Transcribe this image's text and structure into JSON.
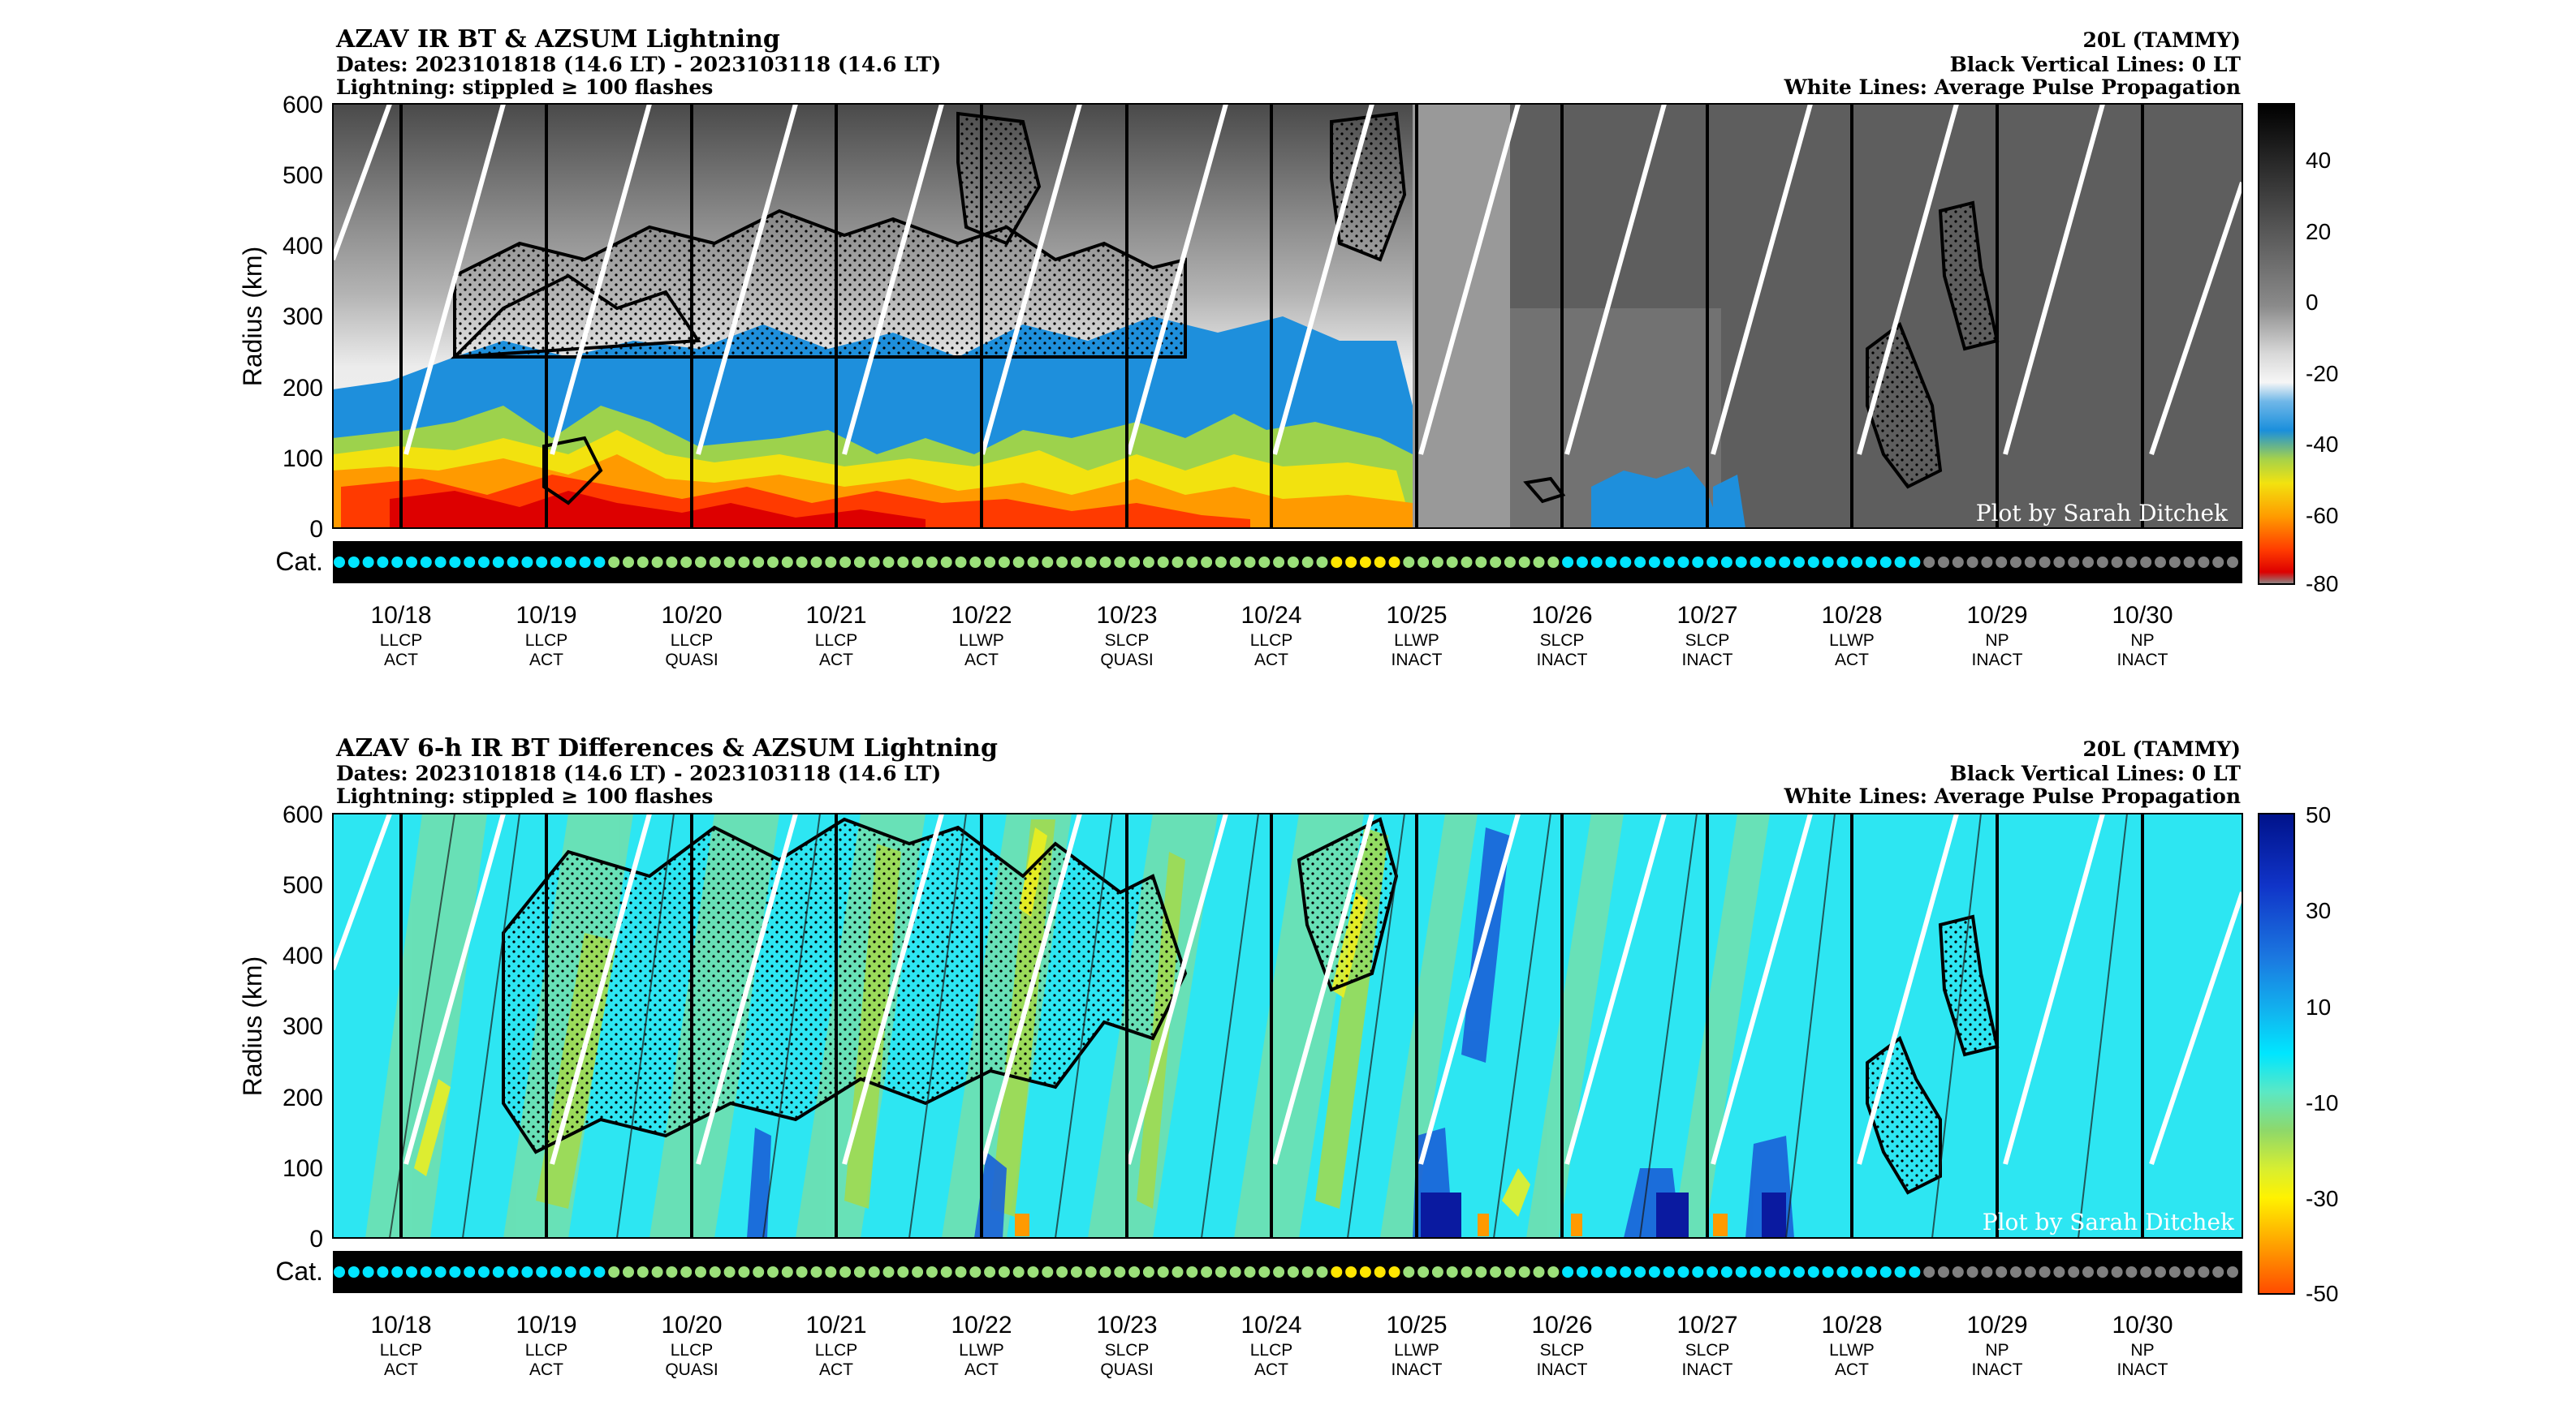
{
  "figure": {
    "credit": "Plot by Sarah Ditchek",
    "cat_label": "Cat.",
    "ylabel": "Radius (km)",
    "y_ticks": [
      "600",
      "500",
      "400",
      "300",
      "200",
      "100",
      "0"
    ],
    "days": [
      {
        "date": "10/18",
        "pulse": "LLCP",
        "phase": "ACT"
      },
      {
        "date": "10/19",
        "pulse": "LLCP",
        "phase": "ACT"
      },
      {
        "date": "10/20",
        "pulse": "LLCP",
        "phase": "QUASI"
      },
      {
        "date": "10/21",
        "pulse": "LLCP",
        "phase": "ACT"
      },
      {
        "date": "10/22",
        "pulse": "LLWP",
        "phase": "ACT"
      },
      {
        "date": "10/23",
        "pulse": "SLCP",
        "phase": "QUASI"
      },
      {
        "date": "10/24",
        "pulse": "LLCP",
        "phase": "ACT"
      },
      {
        "date": "10/25",
        "pulse": "LLWP",
        "phase": "INACT"
      },
      {
        "date": "10/26",
        "pulse": "SLCP",
        "phase": "INACT"
      },
      {
        "date": "10/27",
        "pulse": "SLCP",
        "phase": "INACT"
      },
      {
        "date": "10/28",
        "pulse": "LLWP",
        "phase": "ACT"
      },
      {
        "date": "10/29",
        "pulse": "NP",
        "phase": "INACT"
      },
      {
        "date": "10/30",
        "pulse": "NP",
        "phase": "INACT"
      }
    ],
    "category_dots": "cccccccccccccccccccggggggggggggggggggggggggggggggggggggggggggggggggggyyyyygggggggggggcccccccccccccccccccccccccdddddddddddddddddddddd",
    "category_colors": {
      "c": "#00e5ff",
      "g": "#9be07a",
      "y": "#ffe600",
      "d": "#7f7f7f"
    }
  },
  "chart_data": [
    {
      "type": "heatmap",
      "title": "AZAV IR BT & AZSUM Lightning",
      "subtitle_lines": [
        "Dates: 2023101818 (14.6 LT) - 2023103118 (14.6 LT)",
        "Lightning: stippled ≥ 100 flashes"
      ],
      "right_lines": [
        "20L (TAMMY)",
        "Black Vertical Lines: 0 LT",
        "White Lines: Average Pulse Propagation"
      ],
      "x": [
        "10/18",
        "10/19",
        "10/20",
        "10/21",
        "10/22",
        "10/23",
        "10/24",
        "10/25",
        "10/26",
        "10/27",
        "10/28",
        "10/29",
        "10/30"
      ],
      "xlim": [
        "2023101818",
        "2023103118"
      ],
      "ylabel": "Radius (km)",
      "ylim": [
        0,
        600
      ],
      "colorbar": {
        "ticks": [
          40,
          20,
          0,
          -20,
          -40,
          -60,
          -80
        ],
        "range": [
          -80,
          55
        ]
      },
      "summary": "IR brightness temperature (°C) vs. radius: cold cloud (< -40) extends to ~200-250 km on 10/18-10/24 with coldest tops (-70 to -80) within 100 km; warmer (grey) from 10/25 onward."
    },
    {
      "type": "heatmap",
      "title": "AZAV 6-h IR BT Differences & AZSUM Lightning",
      "subtitle_lines": [
        "Dates: 2023101818 (14.6 LT) - 2023103118 (14.6 LT)",
        "Lightning: stippled ≥ 100 flashes"
      ],
      "right_lines": [
        "20L (TAMMY)",
        "Black Vertical Lines: 0 LT",
        "White Lines: Average Pulse Propagation"
      ],
      "x": [
        "10/18",
        "10/19",
        "10/20",
        "10/21",
        "10/22",
        "10/23",
        "10/24",
        "10/25",
        "10/26",
        "10/27",
        "10/28",
        "10/29",
        "10/30"
      ],
      "xlim": [
        "2023101818",
        "2023103118"
      ],
      "ylabel": "Radius (km)",
      "ylim": [
        0,
        600
      ],
      "colorbar": {
        "ticks": [
          50,
          30,
          10,
          -10,
          -30,
          -50
        ],
        "range": [
          -50,
          50
        ]
      },
      "summary": "6-h IR BT differences (°C) vs. radius with outward-propagating cooling/warming bands near the average pulse propagation lines."
    }
  ]
}
